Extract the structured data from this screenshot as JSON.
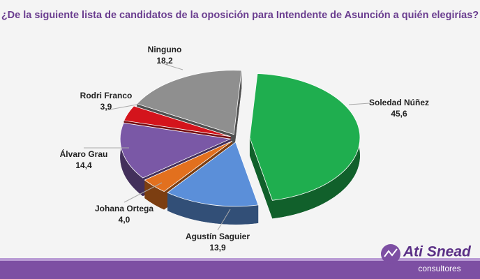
{
  "chart_data": {
    "type": "pie",
    "title": "¿De la siguiente lista de candidatos de la oposición para Intendente de Asunción a quién elegirías?",
    "categories": [
      "Soledad Núñez",
      "Agustín Saguier",
      "Johana Ortega",
      "Álvaro Grau",
      "Rodri Franco",
      "Ninguno"
    ],
    "values": [
      45.6,
      13.9,
      4.0,
      14.4,
      3.9,
      18.2
    ],
    "value_labels": [
      "45,6",
      "13,9",
      "4,0",
      "14,4",
      "3,9",
      "18,2"
    ],
    "colors": [
      "#1fae4f",
      "#5b8fd9",
      "#e2701e",
      "#7a58a6",
      "#d4141c",
      "#8f8f8f"
    ]
  },
  "branding": {
    "name": "Ati Snead",
    "subtitle": "consultores"
  }
}
